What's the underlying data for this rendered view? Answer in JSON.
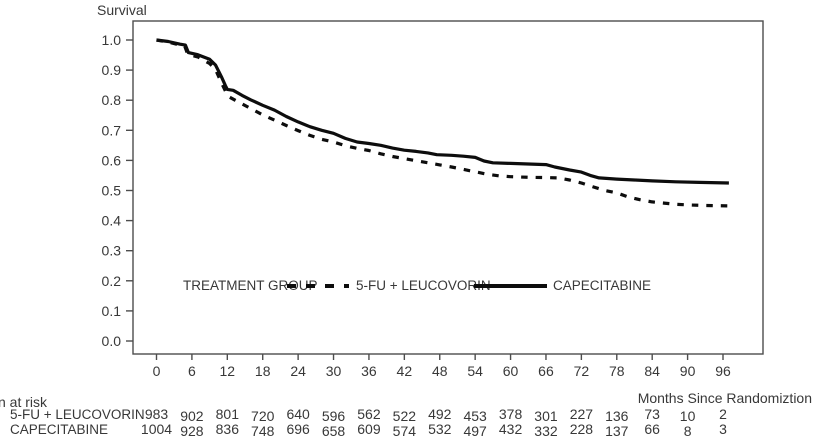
{
  "figure": {
    "y_axis_title": "Survival",
    "x_axis_label": "Months Since Randomiztion"
  },
  "legend": {
    "title": "TREATMENT GROUP"
  },
  "colors": {
    "line": "#0d0d0d",
    "axis": "#4d4d4d",
    "text": "#383838",
    "background": "#ffffff"
  },
  "chart_data": {
    "type": "line",
    "title": "Survival",
    "xlabel": "Months Since Randomiztion",
    "ylabel": "Survival",
    "xlim": [
      0,
      96
    ],
    "ylim": [
      0.0,
      1.0
    ],
    "x_ticks": [
      0,
      6,
      12,
      18,
      24,
      30,
      36,
      42,
      48,
      54,
      60,
      66,
      72,
      78,
      84,
      90,
      96
    ],
    "y_ticks": [
      1.0,
      0.9,
      0.8,
      0.7,
      0.6,
      0.5,
      0.4,
      0.3,
      0.2,
      0.1,
      0.0
    ],
    "grid": false,
    "legend_position": "inside-bottom",
    "series": [
      {
        "name": "5-FU + LEUCOVORIN",
        "line_style": "dashed",
        "color": "#0d0d0d",
        "points": [
          [
            0,
            1.0
          ],
          [
            2,
            0.993
          ],
          [
            4,
            0.983
          ],
          [
            4.8,
            0.979
          ],
          [
            5.3,
            0.952
          ],
          [
            7,
            0.944
          ],
          [
            9,
            0.922
          ],
          [
            10,
            0.902
          ],
          [
            11,
            0.858
          ],
          [
            11.7,
            0.83
          ],
          [
            12.2,
            0.812
          ],
          [
            13.5,
            0.798
          ],
          [
            16,
            0.772
          ],
          [
            18,
            0.751
          ],
          [
            20,
            0.734
          ],
          [
            22,
            0.716
          ],
          [
            24,
            0.699
          ],
          [
            26,
            0.683
          ],
          [
            28,
            0.67
          ],
          [
            30,
            0.661
          ],
          [
            32,
            0.649
          ],
          [
            34,
            0.64
          ],
          [
            36,
            0.633
          ],
          [
            38,
            0.622
          ],
          [
            40,
            0.613
          ],
          [
            42,
            0.606
          ],
          [
            44,
            0.599
          ],
          [
            46,
            0.592
          ],
          [
            48,
            0.585
          ],
          [
            50,
            0.578
          ],
          [
            52,
            0.57
          ],
          [
            54,
            0.562
          ],
          [
            56,
            0.554
          ],
          [
            58,
            0.549
          ],
          [
            60,
            0.546
          ],
          [
            63,
            0.544
          ],
          [
            66,
            0.543
          ],
          [
            68,
            0.542
          ],
          [
            70,
            0.535
          ],
          [
            72,
            0.525
          ],
          [
            74,
            0.512
          ],
          [
            76,
            0.5
          ],
          [
            78,
            0.492
          ],
          [
            80,
            0.478
          ],
          [
            82,
            0.469
          ],
          [
            84,
            0.462
          ],
          [
            86,
            0.458
          ],
          [
            88,
            0.454
          ],
          [
            90,
            0.452
          ],
          [
            93,
            0.45
          ],
          [
            97,
            0.449
          ]
        ]
      },
      {
        "name": "CAPECITABINE",
        "line_style": "solid",
        "color": "#0d0d0d",
        "points": [
          [
            0,
            1.0
          ],
          [
            2,
            0.995
          ],
          [
            4,
            0.986
          ],
          [
            4.9,
            0.983
          ],
          [
            5.4,
            0.958
          ],
          [
            7,
            0.951
          ],
          [
            9,
            0.936
          ],
          [
            10,
            0.917
          ],
          [
            11,
            0.878
          ],
          [
            11.7,
            0.848
          ],
          [
            12,
            0.836
          ],
          [
            13,
            0.833
          ],
          [
            14.5,
            0.816
          ],
          [
            16,
            0.801
          ],
          [
            18,
            0.783
          ],
          [
            20,
            0.767
          ],
          [
            22,
            0.746
          ],
          [
            24,
            0.728
          ],
          [
            26,
            0.712
          ],
          [
            28,
            0.7
          ],
          [
            30,
            0.69
          ],
          [
            32,
            0.673
          ],
          [
            34,
            0.661
          ],
          [
            36,
            0.656
          ],
          [
            38,
            0.65
          ],
          [
            40,
            0.641
          ],
          [
            42,
            0.634
          ],
          [
            44,
            0.63
          ],
          [
            46,
            0.625
          ],
          [
            47.5,
            0.619
          ],
          [
            50,
            0.617
          ],
          [
            52,
            0.614
          ],
          [
            54,
            0.61
          ],
          [
            55.5,
            0.598
          ],
          [
            57,
            0.592
          ],
          [
            60,
            0.59
          ],
          [
            63,
            0.588
          ],
          [
            66,
            0.586
          ],
          [
            67.5,
            0.578
          ],
          [
            70,
            0.568
          ],
          [
            72,
            0.561
          ],
          [
            73.5,
            0.55
          ],
          [
            75,
            0.542
          ],
          [
            78,
            0.538
          ],
          [
            81,
            0.535
          ],
          [
            84,
            0.532
          ],
          [
            88,
            0.529
          ],
          [
            92,
            0.527
          ],
          [
            97,
            0.525
          ]
        ]
      }
    ]
  },
  "risk_table": {
    "heading": "n at risk",
    "time_points": [
      0,
      6,
      12,
      18,
      24,
      30,
      36,
      42,
      48,
      54,
      60,
      66,
      72,
      78,
      84,
      90,
      96
    ],
    "rows": [
      {
        "label": "5-FU + LEUCOVORIN",
        "values": [
          983,
          902,
          801,
          720,
          640,
          596,
          562,
          522,
          492,
          453,
          378,
          301,
          227,
          136,
          73,
          10,
          2
        ]
      },
      {
        "label": "CAPECITABINE",
        "values": [
          1004,
          928,
          836,
          748,
          696,
          658,
          609,
          574,
          532,
          497,
          432,
          332,
          228,
          137,
          66,
          8,
          3
        ]
      }
    ]
  }
}
